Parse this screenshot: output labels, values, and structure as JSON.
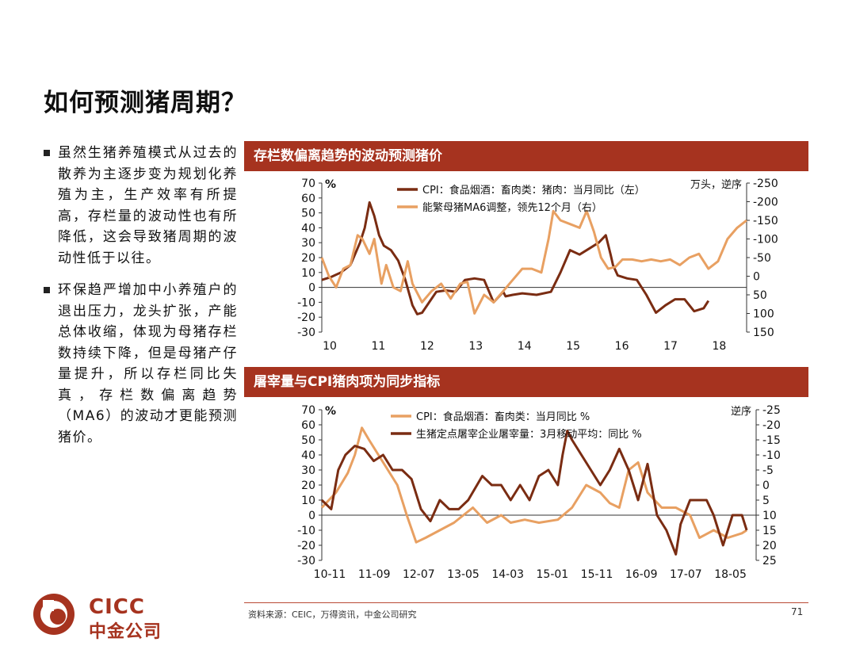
{
  "page": {
    "title": "如何预测猪周期？",
    "bullets": [
      "虽然生猪养殖模式从过去的散养为主逐步变为规划化养殖为主，生产效率有所提高，存栏量的波动性也有所降低，这会导致猪周期的波动性低于以往。",
      "环保趋严增加中小养殖户的退出压力，龙头扩张，产能总体收缩，体现为母猪存栏数持续下降，但是母猪产仔量提升，所以存栏同比失真，存栏数偏离趋势（MA6）的波动才更能预测猪价。"
    ],
    "source": "资料来源：CEIC，万得资讯，中金公司研究",
    "page_number": "71",
    "logo_en": "CICC",
    "logo_cn": "中金公司",
    "colors": {
      "accent": "#a6331f",
      "dark_series": "#7a2c12",
      "light_series": "#e8a062"
    }
  },
  "chart_data": [
    {
      "type": "line",
      "title": "存栏数偏离趋势的波动预测猪价",
      "left_unit": "%",
      "right_unit": "万头，逆序",
      "ylim_left": [
        -30,
        70
      ],
      "ylim_right": [
        150,
        -250
      ],
      "yticks_left": [
        "70",
        "60",
        "50",
        "40",
        "30",
        "20",
        "10",
        "0",
        "-10",
        "-20",
        "-30"
      ],
      "yticks_right": [
        "-250",
        "-200",
        "-150",
        "-100",
        "-50",
        "0",
        "50",
        "100",
        "150"
      ],
      "xtick_labels": [
        "10",
        "11",
        "12",
        "13",
        "14",
        "15",
        "16",
        "17",
        "18"
      ],
      "x_range": [
        0,
        8.9
      ],
      "series": [
        {
          "name": "CPI：食品烟酒：畜肉类：猪肉：当月同比（左）",
          "axis": "left",
          "color": "#7a2c12",
          "x": [
            0,
            0.2,
            0.4,
            0.6,
            0.8,
            0.9,
            1.0,
            1.1,
            1.2,
            1.3,
            1.45,
            1.6,
            1.75,
            1.9,
            2.0,
            2.1,
            2.25,
            2.4,
            2.6,
            2.8,
            3.0,
            3.2,
            3.4,
            3.6,
            3.8,
            3.85,
            4.0,
            4.2,
            4.5,
            4.8,
            5.0,
            5.2,
            5.4,
            5.6,
            5.8,
            5.95,
            6.05,
            6.1,
            6.2,
            6.4,
            6.6,
            6.8,
            7.0,
            7.2,
            7.4,
            7.6,
            7.8,
            8.0,
            8.1
          ],
          "y": [
            5,
            7,
            10,
            15,
            30,
            40,
            57,
            48,
            35,
            28,
            25,
            18,
            5,
            -12,
            -18,
            -17,
            -10,
            -3,
            -2,
            -3,
            5,
            6,
            5,
            -10,
            -3,
            -6,
            -5,
            -4,
            -5,
            -3,
            10,
            25,
            22,
            26,
            30,
            35,
            22,
            15,
            8,
            6,
            5,
            -5,
            -17,
            -12,
            -8,
            -8,
            -16,
            -14,
            -9
          ]
        },
        {
          "name": "能繁母猪MA6调整，领先12个月（右）",
          "axis": "right",
          "color": "#e8a062",
          "x": [
            0,
            0.15,
            0.3,
            0.45,
            0.6,
            0.75,
            0.85,
            1.0,
            1.1,
            1.25,
            1.35,
            1.5,
            1.65,
            1.8,
            1.9,
            2.1,
            2.3,
            2.5,
            2.7,
            2.9,
            3.05,
            3.2,
            3.4,
            3.6,
            3.8,
            4.0,
            4.2,
            4.4,
            4.6,
            4.75,
            4.85,
            5.0,
            5.2,
            5.4,
            5.55,
            5.7,
            5.85,
            6.0,
            6.15,
            6.3,
            6.5,
            6.7,
            6.9,
            7.1,
            7.3,
            7.5,
            7.7,
            7.9,
            8.1,
            8.3,
            8.5,
            8.7,
            8.9
          ],
          "y": [
            -50,
            0,
            30,
            -20,
            -30,
            -110,
            -100,
            -60,
            -100,
            20,
            -30,
            30,
            40,
            -40,
            20,
            70,
            40,
            20,
            60,
            20,
            15,
            100,
            50,
            70,
            40,
            10,
            -20,
            -20,
            -10,
            -100,
            -175,
            -150,
            -140,
            -130,
            -175,
            -120,
            -50,
            -20,
            -25,
            -45,
            -45,
            -40,
            -45,
            -40,
            -45,
            -30,
            -50,
            -60,
            -20,
            -40,
            -100,
            -130,
            -150
          ]
        }
      ]
    },
    {
      "type": "line",
      "title": "屠宰量与CPI猪肉项为同步指标",
      "left_unit": "%",
      "right_unit": "逆序",
      "ylim_left": [
        -30,
        70
      ],
      "ylim_right": [
        25,
        -25
      ],
      "yticks_left": [
        "70",
        "60",
        "50",
        "40",
        "30",
        "20",
        "10",
        "0",
        "-10",
        "-20",
        "-30"
      ],
      "yticks_right": [
        "-25",
        "-20",
        "-15",
        "-10",
        "-5",
        "0",
        "5",
        "10",
        "15",
        "20",
        "25"
      ],
      "xtick_labels": [
        "10-11",
        "11-09",
        "12-07",
        "13-05",
        "14-03",
        "15-01",
        "15-11",
        "16-09",
        "17-07",
        "18-05"
      ],
      "x_range": [
        0,
        9.2
      ],
      "series": [
        {
          "name": "CPI：食品烟酒：畜肉类：当月同比 %",
          "axis": "left",
          "color": "#e8a062",
          "x": [
            0,
            0.3,
            0.55,
            0.7,
            0.85,
            1.0,
            1.2,
            1.4,
            1.6,
            1.8,
            2.0,
            2.2,
            2.5,
            2.8,
            3.0,
            3.2,
            3.5,
            3.8,
            4.0,
            4.3,
            4.6,
            5.0,
            5.3,
            5.6,
            5.9,
            6.1,
            6.3,
            6.5,
            6.7,
            6.9,
            7.2,
            7.5,
            7.8,
            8.0,
            8.3,
            8.6,
            8.9,
            9.0
          ],
          "y": [
            5,
            15,
            28,
            40,
            58,
            50,
            40,
            30,
            20,
            0,
            -18,
            -15,
            -10,
            -5,
            0,
            5,
            -5,
            0,
            -5,
            -3,
            -5,
            -3,
            5,
            20,
            15,
            8,
            5,
            30,
            35,
            15,
            5,
            5,
            0,
            -15,
            -10,
            -15,
            -12,
            -10
          ]
        },
        {
          "name": "生猪定点屠宰企业屠宰量：3月移动平均：同比 %",
          "axis": "right",
          "color": "#7a2c12",
          "x": [
            0,
            0.2,
            0.35,
            0.5,
            0.7,
            0.9,
            1.1,
            1.3,
            1.5,
            1.7,
            1.9,
            2.1,
            2.3,
            2.5,
            2.7,
            2.9,
            3.1,
            3.4,
            3.6,
            3.8,
            4.0,
            4.2,
            4.4,
            4.6,
            4.8,
            5.0,
            5.1,
            5.2,
            5.3,
            5.5,
            5.7,
            5.9,
            6.1,
            6.3,
            6.5,
            6.7,
            6.9,
            7.1,
            7.3,
            7.5,
            7.6,
            7.8,
            8.0,
            8.15,
            8.3,
            8.5,
            8.7,
            8.9,
            9.0
          ],
          "y": [
            5,
            8,
            -5,
            -10,
            -13,
            -12,
            -8,
            -10,
            -5,
            -5,
            -2,
            8,
            12,
            5,
            8,
            8,
            5,
            -3,
            0,
            0,
            5,
            0,
            5,
            -3,
            -5,
            0,
            -10,
            -18,
            -15,
            -10,
            -5,
            0,
            -5,
            -12,
            -5,
            5,
            -7,
            10,
            15,
            23,
            13,
            5,
            5,
            5,
            10,
            20,
            10,
            10,
            15
          ]
        }
      ]
    }
  ]
}
